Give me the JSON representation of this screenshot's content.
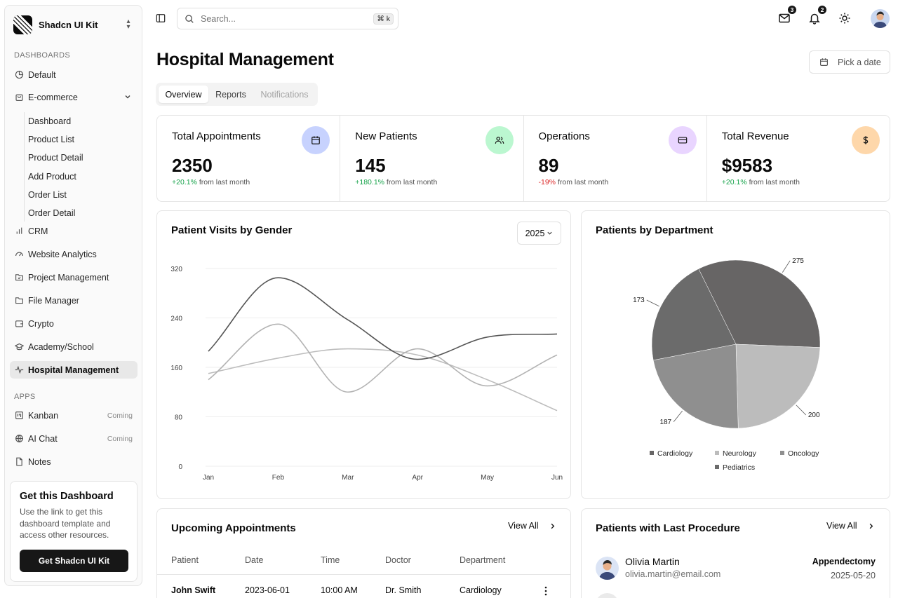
{
  "sidebar": {
    "brand": "Shadcn UI Kit",
    "dashboards_label": "DASHBOARDS",
    "items": {
      "default": "Default",
      "ecommerce": "E-commerce",
      "crm": "CRM",
      "website_analytics": "Website Analytics",
      "project_management": "Project Management",
      "file_manager": "File Manager",
      "crypto": "Crypto",
      "academy": "Academy/School",
      "hospital": "Hospital Management"
    },
    "ecommerce_sub": [
      "Dashboard",
      "Product List",
      "Product Detail",
      "Add Product",
      "Order List",
      "Order Detail"
    ],
    "apps_label": "APPS",
    "apps": {
      "kanban": "Kanban",
      "ai_chat": "AI Chat",
      "notes": "Notes",
      "coming": "Coming"
    },
    "promo": {
      "title": "Get this Dashboard",
      "text": "Use the link to get this dashboard template and access other resources.",
      "button": "Get Shadcn UI Kit"
    }
  },
  "topbar": {
    "search_placeholder": "Search...",
    "shortcut": "⌘ k",
    "mail_count": "3",
    "notif_count": "2"
  },
  "page": {
    "title": "Hospital Management",
    "date_button": "Pick a date",
    "tabs": [
      "Overview",
      "Reports",
      "Notifications"
    ]
  },
  "stats": [
    {
      "label": "Total Appointments",
      "value": "2350",
      "delta": "+20.1%",
      "suffix": "from last month",
      "color": "#c7d2fe"
    },
    {
      "label": "New Patients",
      "value": "145",
      "delta": "+180.1%",
      "suffix": "from last month",
      "color": "#bbf7d0"
    },
    {
      "label": "Operations",
      "value": "89",
      "delta": "-19%",
      "suffix": "from last month",
      "color": "#e9d5ff"
    },
    {
      "label": "Total Revenue",
      "value": "$9583",
      "delta": "+20.1%",
      "suffix": "from last month",
      "color": "#fed7aa"
    }
  ],
  "visits_card": {
    "title": "Patient Visits by Gender",
    "year": "2025"
  },
  "department_card": {
    "title": "Patients by Department"
  },
  "appointments_card": {
    "title": "Upcoming Appointments",
    "view_all": "View All",
    "columns": [
      "Patient",
      "Date",
      "Time",
      "Doctor",
      "Department"
    ],
    "rows": [
      {
        "patient": "John Swift",
        "date": "2023-06-01",
        "time": "10:00 AM",
        "doctor": "Dr. Smith",
        "department": "Cardiology"
      }
    ]
  },
  "procedures_card": {
    "title": "Patients with Last Procedure",
    "view_all": "View All",
    "items": [
      {
        "name": "Olivia Martin",
        "email": "olivia.martin@email.com",
        "procedure": "Appendectomy",
        "date": "2025-05-20"
      }
    ]
  },
  "chart_data": [
    {
      "type": "line",
      "categories": [
        "Jan",
        "Feb",
        "Mar",
        "Apr",
        "May",
        "Jun"
      ],
      "ylim": [
        0,
        320
      ],
      "yticks": [
        0,
        80,
        160,
        240,
        320
      ],
      "grid": true,
      "series": [
        {
          "values": [
            186,
            305,
            237,
            173,
            209,
            214
          ],
          "color": "#555555"
        },
        {
          "values": [
            140,
            230,
            120,
            190,
            130,
            180
          ],
          "color": "#b3b3b3"
        },
        {
          "values": [
            150,
            175,
            190,
            180,
            140,
            90
          ],
          "color": "#bdbdbd"
        }
      ]
    },
    {
      "type": "pie",
      "categories": [
        "Cardiology",
        "Neurology",
        "Oncology",
        "Pediatrics"
      ],
      "values": [
        275,
        200,
        187,
        173
      ],
      "colors": [
        "#676565",
        "#bcbcbc",
        "#8f8f8f",
        "#6b6b6b"
      ],
      "labels": [
        "275",
        "200",
        "187",
        "173"
      ],
      "legend": "bottom"
    }
  ]
}
